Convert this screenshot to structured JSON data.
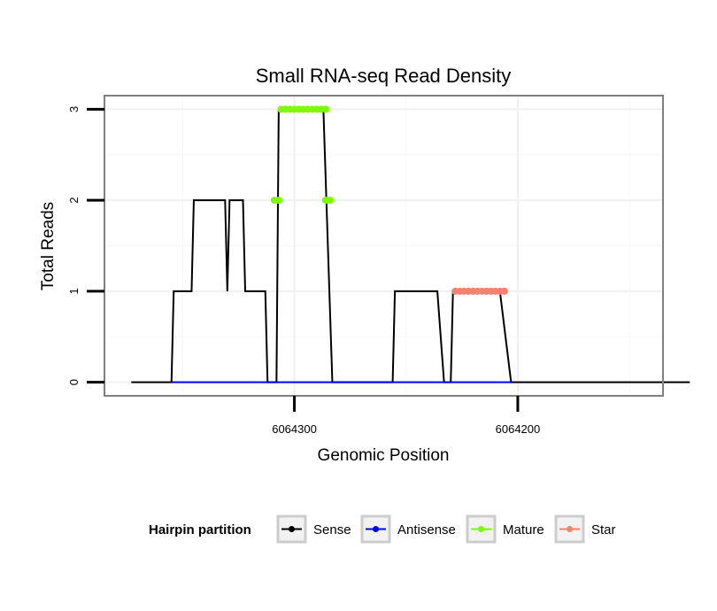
{
  "chart_data": {
    "type": "line",
    "title": "Small RNA-seq Read Density",
    "xlabel": "Genomic Position",
    "ylabel": "Total Reads",
    "xlim": [
      6064385,
      6064135
    ],
    "ylim": [
      -0.15,
      3.15
    ],
    "x_reversed": true,
    "x_ticks": [
      6064300,
      6064200
    ],
    "x_tick_labels": [
      "6064300",
      "6064200"
    ],
    "y_ticks": [
      0,
      1,
      2,
      3
    ],
    "y_tick_labels": [
      "0",
      "1",
      "2",
      "3"
    ],
    "grid": true,
    "legend": {
      "title": "Hairpin partition",
      "position": "bottom",
      "entries": [
        {
          "label": "Sense",
          "color": "#000000"
        },
        {
          "label": "Antisense",
          "color": "#0000ff"
        },
        {
          "label": "Mature",
          "color": "#7cfc00"
        },
        {
          "label": "Star",
          "color": "#fa8072"
        }
      ]
    },
    "series": [
      {
        "name": "Sense",
        "color": "#000000",
        "style": "line",
        "points": [
          [
            6064373,
            0
          ],
          [
            6064355,
            0
          ],
          [
            6064354,
            1
          ],
          [
            6064346,
            1
          ],
          [
            6064345,
            2
          ],
          [
            6064331,
            2
          ],
          [
            6064330,
            1
          ],
          [
            6064329,
            2
          ],
          [
            6064323,
            2
          ],
          [
            6064322,
            1
          ],
          [
            6064313,
            1
          ],
          [
            6064312,
            0
          ],
          [
            6064308,
            0
          ],
          [
            6064307,
            3
          ],
          [
            6064287,
            3
          ],
          [
            6064283,
            0
          ],
          [
            6064256,
            0
          ],
          [
            6064255,
            1
          ],
          [
            6064236,
            1
          ],
          [
            6064233,
            0
          ],
          [
            6064230,
            0
          ],
          [
            6064229,
            1
          ],
          [
            6064208,
            1
          ],
          [
            6064203,
            0
          ],
          [
            6064123,
            0
          ]
        ]
      },
      {
        "name": "Antisense",
        "color": "#0000ff",
        "style": "line",
        "points": [
          [
            6064355,
            0
          ],
          [
            6064283,
            0
          ],
          [
            6064256,
            0
          ],
          [
            6064203,
            0
          ]
        ]
      },
      {
        "name": "Mature",
        "color": "#7cfc00",
        "style": "points",
        "points": [
          [
            6064309,
            2
          ],
          [
            6064307,
            2
          ],
          [
            6064286,
            2
          ],
          [
            6064284,
            2
          ],
          [
            6064306,
            3
          ],
          [
            6064304,
            3
          ],
          [
            6064302,
            3
          ],
          [
            6064300,
            3
          ],
          [
            6064298,
            3
          ],
          [
            6064296,
            3
          ],
          [
            6064294,
            3
          ],
          [
            6064292,
            3
          ],
          [
            6064290,
            3
          ],
          [
            6064288,
            3
          ],
          [
            6064286,
            3
          ]
        ]
      },
      {
        "name": "Star",
        "color": "#fa8072",
        "style": "points",
        "points": [
          [
            6064228,
            1
          ],
          [
            6064226,
            1
          ],
          [
            6064224,
            1
          ],
          [
            6064222,
            1
          ],
          [
            6064220,
            1
          ],
          [
            6064218,
            1
          ],
          [
            6064216,
            1
          ],
          [
            6064214,
            1
          ],
          [
            6064212,
            1
          ],
          [
            6064210,
            1
          ],
          [
            6064208,
            1
          ],
          [
            6064206,
            1
          ]
        ]
      }
    ]
  }
}
